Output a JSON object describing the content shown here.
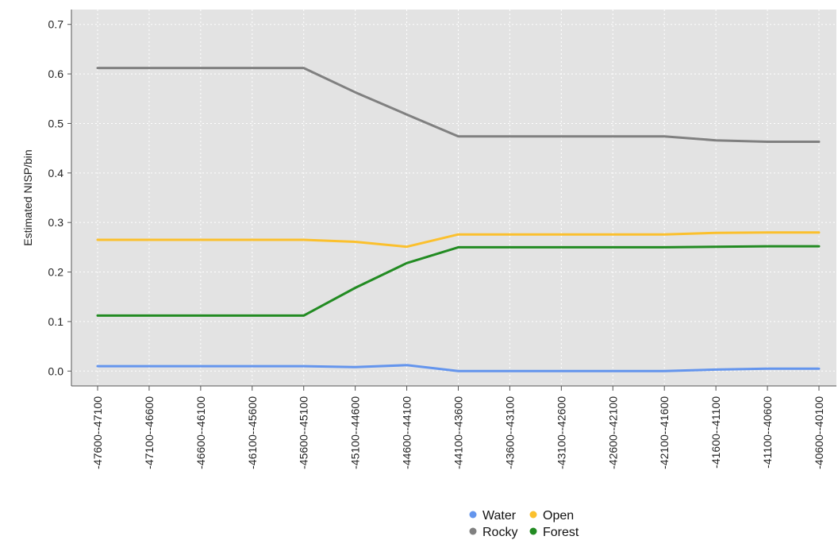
{
  "chart_data": {
    "type": "line",
    "title": "",
    "xlabel": "",
    "ylabel": "Estimated NISP/bin",
    "ylim": [
      -0.03,
      0.73
    ],
    "yticks": [
      0.0,
      0.1,
      0.2,
      0.3,
      0.4,
      0.5,
      0.6,
      0.7
    ],
    "ytick_labels": [
      "0.0",
      "0.1",
      "0.2",
      "0.3",
      "0.4",
      "0.5",
      "0.6",
      "0.7"
    ],
    "grid": true,
    "legend_position": "bottom",
    "categories": [
      "-47600--47100",
      "-47100--46600",
      "-46600--46100",
      "-46100--45600",
      "-45600--45100",
      "-45100--44600",
      "-44600--44100",
      "-44100--43600",
      "-43600--43100",
      "-43100--42600",
      "-42600--42100",
      "-42100--41600",
      "-41600--41100",
      "-41100--40600",
      "-40600--40100"
    ],
    "series": [
      {
        "name": "Water",
        "color": "#6495ED",
        "values": [
          0.01,
          0.01,
          0.01,
          0.01,
          0.01,
          0.008,
          0.012,
          0.0,
          0.0,
          0.0,
          0.0,
          0.0,
          0.003,
          0.005,
          0.005
        ]
      },
      {
        "name": "Open",
        "color": "#FBC02D",
        "values": [
          0.265,
          0.265,
          0.265,
          0.265,
          0.265,
          0.261,
          0.251,
          0.276,
          0.276,
          0.276,
          0.276,
          0.276,
          0.279,
          0.28,
          0.28
        ]
      },
      {
        "name": "Rocky",
        "color": "#808080",
        "values": [
          0.612,
          0.612,
          0.612,
          0.612,
          0.612,
          0.563,
          0.518,
          0.474,
          0.474,
          0.474,
          0.474,
          0.474,
          0.466,
          0.463,
          0.463
        ]
      },
      {
        "name": "Forest",
        "color": "#228B22",
        "values": [
          0.112,
          0.112,
          0.112,
          0.112,
          0.112,
          0.168,
          0.218,
          0.25,
          0.25,
          0.25,
          0.25,
          0.25,
          0.251,
          0.252,
          0.252
        ]
      }
    ],
    "legend_order": [
      "Water",
      "Open",
      "Rocky",
      "Forest"
    ],
    "colors": {
      "panel_background": "#E3E3E3",
      "grid": "#FFFFFF",
      "axis": "#555555"
    }
  }
}
